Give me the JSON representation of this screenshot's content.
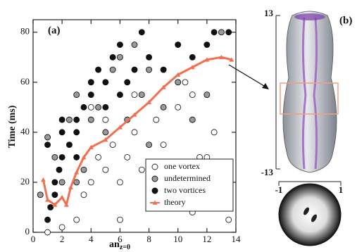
{
  "chart_data": {
    "type": "scatter",
    "panel_label": "(a)",
    "x_label": "an",
    "x_label_subscript": "z=0",
    "y_label": "Time (ms)",
    "xlim": [
      0,
      14
    ],
    "xticks": [
      0,
      2,
      4,
      6,
      8,
      10,
      12,
      14
    ],
    "ylim": [
      0,
      85
    ],
    "yticks": [
      0,
      20,
      40,
      60,
      80
    ],
    "series": [
      {
        "name": "one vortex",
        "marker": "open",
        "color": "#222",
        "x": [
          1,
          2,
          3,
          3.5,
          4,
          4.5,
          5,
          5.5,
          6,
          6.5,
          7,
          7.5,
          8,
          8.5,
          9,
          9.5,
          10,
          10.5,
          11,
          11.5,
          12,
          12.5,
          13,
          13.5,
          6,
          8,
          4,
          5,
          7,
          10.5,
          9,
          11
        ],
        "values": [
          0,
          2,
          5,
          15,
          20,
          30,
          25,
          35,
          20,
          30,
          40,
          25,
          20,
          45,
          35,
          10,
          50,
          20,
          55,
          30,
          30,
          40,
          10,
          5,
          5,
          15,
          50,
          45,
          55,
          60,
          25,
          8
        ]
      },
      {
        "name": "undetermined",
        "marker": "filled",
        "color": "#9a9a9a",
        "x": [
          0.5,
          1,
          1.5,
          2,
          2.5,
          3,
          3.5,
          4,
          4.5,
          5,
          5.5,
          6,
          6.5,
          7,
          7.5,
          8,
          9,
          10,
          11,
          12,
          13,
          3,
          8
        ],
        "values": [
          15,
          38,
          30,
          20,
          45,
          55,
          25,
          45,
          50,
          40,
          65,
          70,
          45,
          75,
          55,
          65,
          50,
          60,
          45,
          55,
          80,
          20,
          35
        ]
      },
      {
        "name": "two vortices",
        "marker": "filled",
        "color": "#111",
        "x": [
          1,
          1.2,
          1.5,
          1.5,
          1.8,
          2,
          2,
          2.5,
          3,
          3,
          3.5,
          4,
          4,
          4.5,
          5,
          5,
          5.5,
          6,
          6,
          6.5,
          7,
          7.5,
          8,
          9,
          10,
          11,
          12,
          12.5,
          13.5,
          2,
          3,
          1
        ],
        "values": [
          5,
          10,
          15,
          20,
          25,
          30,
          40,
          35,
          40,
          45,
          50,
          55,
          60,
          65,
          50,
          60,
          70,
          55,
          75,
          60,
          65,
          80,
          70,
          65,
          75,
          70,
          75,
          80,
          80,
          45,
          30,
          35
        ]
      },
      {
        "name": "theory",
        "marker": "triangle-line",
        "color": "#f07050",
        "x": [
          0.7,
          1,
          1.5,
          2,
          2.3,
          2.6,
          3,
          3.5,
          4,
          5,
          6,
          7,
          8,
          9,
          10,
          11,
          12,
          13,
          13.7
        ],
        "values": [
          21,
          13,
          11,
          14,
          11,
          18,
          24,
          30,
          34,
          37,
          42,
          47,
          52,
          58,
          63,
          66,
          69,
          70,
          69
        ]
      }
    ],
    "panel_b": {
      "label": "(b)",
      "zlim": [
        -13,
        13
      ],
      "xlim": [
        -1,
        1
      ]
    }
  }
}
